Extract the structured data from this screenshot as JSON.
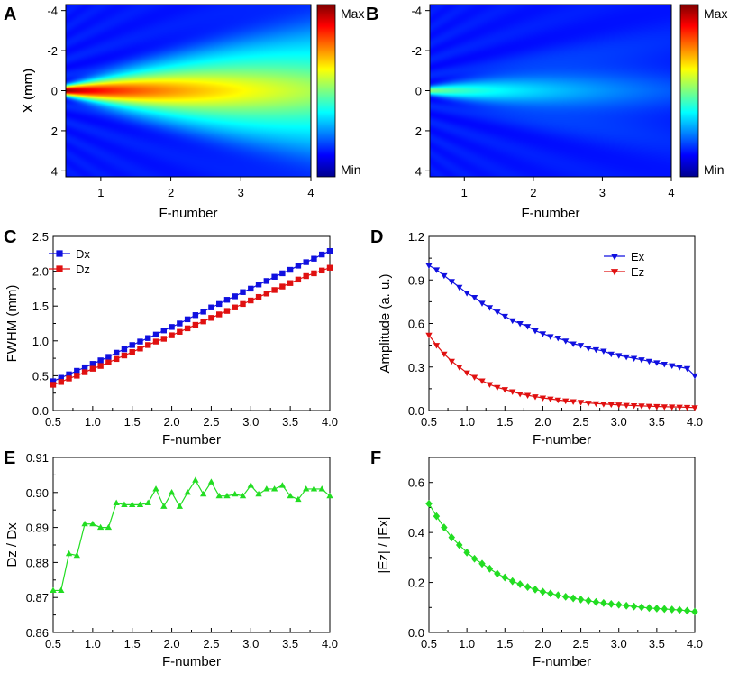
{
  "chart_data": [
    {
      "panel": "A",
      "type": "heatmap",
      "xlabel": "F-number",
      "ylabel": "X (mm)",
      "xticks": [
        "1",
        "2",
        "3",
        "4"
      ],
      "yticks": [
        "-4",
        "-2",
        "0",
        "2",
        "4"
      ],
      "xlim": [
        0.5,
        4
      ],
      "ylim": [
        -4.3,
        4.3
      ],
      "colorbar": {
        "max_label": "Max",
        "min_label": "Min"
      },
      "beam": {
        "amplitude_start": 1.0,
        "amplitude_end": 0.45,
        "width_start_mm": 0.18,
        "width_end_mm": 1.9
      }
    },
    {
      "panel": "B",
      "type": "heatmap",
      "xlabel": "F-number",
      "ylabel": "X (mm)",
      "xticks": [
        "1",
        "2",
        "3",
        "4"
      ],
      "yticks": [
        "-4",
        "-2",
        "0",
        "2",
        "4"
      ],
      "xlim": [
        0.5,
        4
      ],
      "ylim": [
        -4.3,
        4.3
      ],
      "colorbar": {
        "max_label": "Max",
        "min_label": "Min"
      },
      "beam": {
        "amplitude_start": 0.42,
        "amplitude_end": 0.05,
        "width_start_mm": 0.15,
        "width_end_mm": 1.6
      }
    },
    {
      "panel": "C",
      "type": "scatter",
      "xlabel": "F-number",
      "ylabel": "FWHM (mm)",
      "xlim": [
        0.5,
        4.0
      ],
      "ylim": [
        0.0,
        2.5
      ],
      "xticks": [
        "0.5",
        "1.0",
        "1.5",
        "2.0",
        "2.5",
        "3.0",
        "3.5",
        "4.0"
      ],
      "yticks": [
        "0.0",
        "0.5",
        "1.0",
        "1.5",
        "2.0",
        "2.5"
      ],
      "legend_position": "top-left",
      "x": [
        0.5,
        0.6,
        0.7,
        0.8,
        0.9,
        1.0,
        1.1,
        1.2,
        1.3,
        1.4,
        1.5,
        1.6,
        1.7,
        1.8,
        1.9,
        2.0,
        2.1,
        2.2,
        2.3,
        2.4,
        2.5,
        2.6,
        2.7,
        2.8,
        2.9,
        3.0,
        3.1,
        3.2,
        3.3,
        3.4,
        3.5,
        3.6,
        3.7,
        3.8,
        3.9,
        4.0
      ],
      "series": [
        {
          "name": "Dx",
          "color": "#1010e0",
          "marker": "square",
          "values": [
            0.42,
            0.47,
            0.52,
            0.57,
            0.62,
            0.67,
            0.72,
            0.77,
            0.83,
            0.88,
            0.94,
            0.99,
            1.04,
            1.09,
            1.15,
            1.2,
            1.25,
            1.31,
            1.37,
            1.42,
            1.48,
            1.53,
            1.59,
            1.64,
            1.7,
            1.75,
            1.81,
            1.86,
            1.92,
            1.97,
            2.02,
            2.08,
            2.13,
            2.18,
            2.24,
            2.29
          ]
        },
        {
          "name": "Dz",
          "color": "#e01010",
          "marker": "square",
          "values": [
            0.37,
            0.41,
            0.46,
            0.5,
            0.55,
            0.6,
            0.64,
            0.69,
            0.74,
            0.79,
            0.84,
            0.89,
            0.94,
            0.99,
            1.03,
            1.08,
            1.13,
            1.18,
            1.23,
            1.28,
            1.33,
            1.38,
            1.43,
            1.48,
            1.53,
            1.58,
            1.63,
            1.68,
            1.73,
            1.78,
            1.83,
            1.88,
            1.93,
            1.97,
            2.01,
            2.05
          ]
        }
      ]
    },
    {
      "panel": "D",
      "type": "line",
      "xlabel": "F-number",
      "ylabel": "Amplitude (a. u.)",
      "xlim": [
        0.5,
        4.0
      ],
      "ylim": [
        0.0,
        1.2
      ],
      "xticks": [
        "0.5",
        "1.0",
        "1.5",
        "2.0",
        "2.5",
        "3.0",
        "3.5",
        "4.0"
      ],
      "yticks": [
        "0.0",
        "0.3",
        "0.6",
        "0.9",
        "1.2"
      ],
      "legend_position": "top-right",
      "x": [
        0.5,
        0.6,
        0.7,
        0.8,
        0.9,
        1.0,
        1.1,
        1.2,
        1.3,
        1.4,
        1.5,
        1.6,
        1.7,
        1.8,
        1.9,
        2.0,
        2.1,
        2.2,
        2.3,
        2.4,
        2.5,
        2.6,
        2.7,
        2.8,
        2.9,
        3.0,
        3.1,
        3.2,
        3.3,
        3.4,
        3.5,
        3.6,
        3.7,
        3.8,
        3.9,
        4.0
      ],
      "series": [
        {
          "name": "Ex",
          "color": "#1010e0",
          "marker": "triangle-down",
          "values": [
            1.0,
            0.97,
            0.93,
            0.89,
            0.85,
            0.81,
            0.78,
            0.74,
            0.71,
            0.68,
            0.65,
            0.62,
            0.6,
            0.58,
            0.55,
            0.53,
            0.51,
            0.5,
            0.48,
            0.46,
            0.45,
            0.43,
            0.42,
            0.41,
            0.39,
            0.38,
            0.37,
            0.36,
            0.35,
            0.34,
            0.33,
            0.32,
            0.31,
            0.3,
            0.29,
            0.24
          ]
        },
        {
          "name": "Ez",
          "color": "#e01010",
          "marker": "triangle-down",
          "values": [
            0.52,
            0.45,
            0.39,
            0.34,
            0.3,
            0.26,
            0.23,
            0.205,
            0.18,
            0.16,
            0.145,
            0.13,
            0.115,
            0.105,
            0.095,
            0.087,
            0.08,
            0.073,
            0.067,
            0.062,
            0.057,
            0.052,
            0.048,
            0.045,
            0.042,
            0.039,
            0.036,
            0.034,
            0.032,
            0.03,
            0.028,
            0.026,
            0.025,
            0.024,
            0.022,
            0.02
          ]
        }
      ]
    },
    {
      "panel": "E",
      "type": "line",
      "xlabel": "F-number",
      "ylabel": "Dz / Dx",
      "xlim": [
        0.5,
        4.0
      ],
      "ylim": [
        0.86,
        0.91
      ],
      "xticks": [
        "0.5",
        "1.0",
        "1.5",
        "2.0",
        "2.5",
        "3.0",
        "3.5",
        "4.0"
      ],
      "yticks": [
        "0.86",
        "0.87",
        "0.88",
        "0.89",
        "0.90",
        "0.91"
      ],
      "x": [
        0.5,
        0.6,
        0.7,
        0.8,
        0.9,
        1.0,
        1.1,
        1.2,
        1.3,
        1.4,
        1.5,
        1.6,
        1.7,
        1.8,
        1.9,
        2.0,
        2.1,
        2.2,
        2.3,
        2.4,
        2.5,
        2.6,
        2.7,
        2.8,
        2.9,
        3.0,
        3.1,
        3.2,
        3.3,
        3.4,
        3.5,
        3.6,
        3.7,
        3.8,
        3.9,
        4.0
      ],
      "series": [
        {
          "name": "Dz/Dx",
          "color": "#22dd22",
          "marker": "triangle-up",
          "values": [
            0.872,
            0.872,
            0.8825,
            0.882,
            0.891,
            0.891,
            0.89,
            0.89,
            0.897,
            0.8965,
            0.8965,
            0.8965,
            0.897,
            0.901,
            0.896,
            0.9,
            0.896,
            0.9,
            0.9035,
            0.8995,
            0.903,
            0.899,
            0.899,
            0.8995,
            0.899,
            0.902,
            0.8995,
            0.901,
            0.901,
            0.902,
            0.899,
            0.898,
            0.901,
            0.901,
            0.901,
            0.899
          ]
        }
      ]
    },
    {
      "panel": "F",
      "type": "line",
      "xlabel": "F-number",
      "ylabel": "|Ez| / |Ex|",
      "xlim": [
        0.5,
        4.0
      ],
      "ylim": [
        0.0,
        0.7
      ],
      "xticks": [
        "0.5",
        "1.0",
        "1.5",
        "2.0",
        "2.5",
        "3.0",
        "3.5",
        "4.0"
      ],
      "yticks": [
        "0.0",
        "0.2",
        "0.4",
        "0.6"
      ],
      "x": [
        0.5,
        0.6,
        0.7,
        0.8,
        0.9,
        1.0,
        1.1,
        1.2,
        1.3,
        1.4,
        1.5,
        1.6,
        1.7,
        1.8,
        1.9,
        2.0,
        2.1,
        2.2,
        2.3,
        2.4,
        2.5,
        2.6,
        2.7,
        2.8,
        2.9,
        3.0,
        3.1,
        3.2,
        3.3,
        3.4,
        3.5,
        3.6,
        3.7,
        3.8,
        3.9,
        4.0
      ],
      "series": [
        {
          "name": "|Ez|/|Ex|",
          "color": "#22dd22",
          "marker": "diamond",
          "values": [
            0.515,
            0.465,
            0.42,
            0.38,
            0.35,
            0.32,
            0.295,
            0.275,
            0.255,
            0.235,
            0.22,
            0.205,
            0.193,
            0.182,
            0.172,
            0.163,
            0.156,
            0.149,
            0.143,
            0.137,
            0.132,
            0.127,
            0.122,
            0.118,
            0.114,
            0.111,
            0.107,
            0.104,
            0.101,
            0.098,
            0.096,
            0.094,
            0.092,
            0.09,
            0.087,
            0.083
          ]
        }
      ]
    }
  ]
}
